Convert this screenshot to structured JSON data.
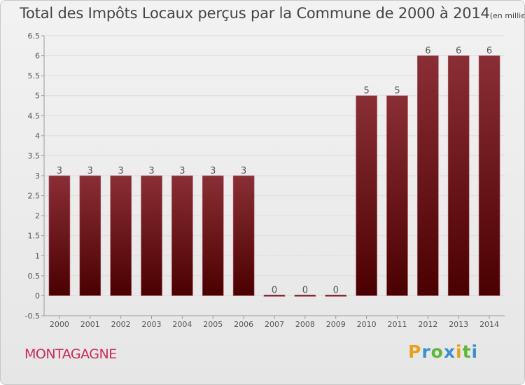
{
  "title": "Total des Impôts Locaux perçus par la Commune de 2000 à 2014",
  "unit": "(en milliers d'€)",
  "commune": "MONTAGAGNE",
  "logo": {
    "letters": [
      "P",
      "r",
      "o",
      "x",
      "i",
      "t",
      "i"
    ],
    "colors": [
      "#e8a020",
      "#3c8fd0",
      "#5cb83c",
      "#3c8fd0",
      "#e8a020",
      "#5cb83c",
      "#3c8fd0"
    ]
  },
  "colors": {
    "bar_light": "#8a2e36",
    "bar_dark": "#4a0000",
    "grid": "#dcdcdc",
    "axis": "#9a9a9a"
  },
  "chart_data": {
    "type": "bar",
    "categories": [
      "2000",
      "2001",
      "2002",
      "2003",
      "2004",
      "2005",
      "2006",
      "2007",
      "2008",
      "2009",
      "2010",
      "2011",
      "2012",
      "2013",
      "2014"
    ],
    "values": [
      3,
      3,
      3,
      3,
      3,
      3,
      3,
      0,
      0,
      0,
      5,
      5,
      6,
      6,
      6
    ],
    "data_labels": [
      "3",
      "3",
      "3",
      "3",
      "3",
      "3",
      "3",
      "0",
      "0",
      "0",
      "5",
      "5",
      "6",
      "6",
      "6"
    ],
    "yticks": [
      "-0.5",
      "0",
      "0.5",
      "1",
      "1.5",
      "2",
      "2.5",
      "3",
      "3.5",
      "4",
      "4.5",
      "5",
      "5.5",
      "6",
      "6.5"
    ],
    "ylim": [
      -0.5,
      6.5
    ],
    "grid": true
  }
}
